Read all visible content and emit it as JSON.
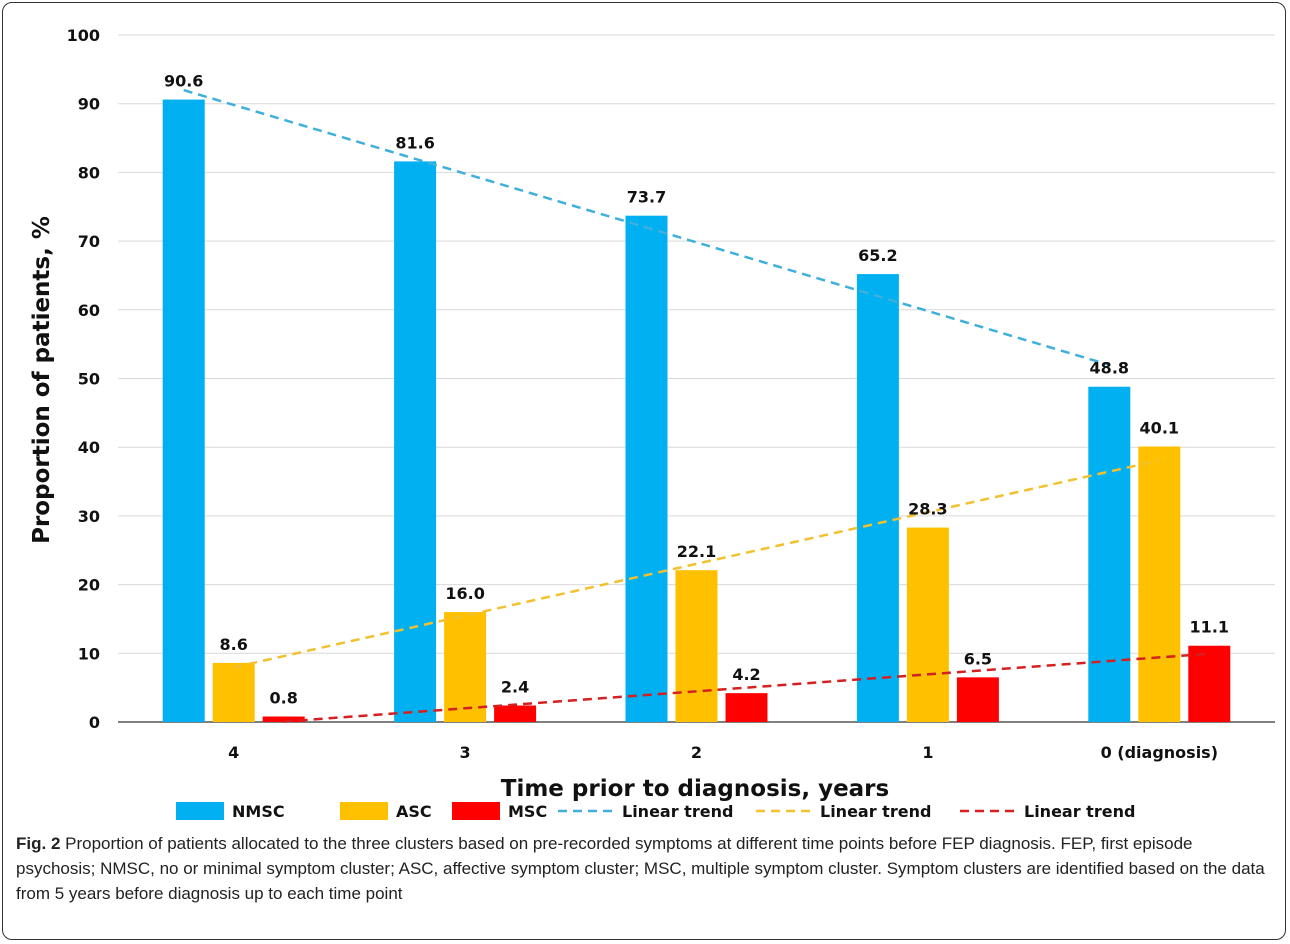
{
  "chart_data": {
    "type": "bar",
    "categories": [
      "4",
      "3",
      "2",
      "1",
      "0 (diagnosis)"
    ],
    "series": [
      {
        "name": "NMSC",
        "values": [
          90.6,
          81.6,
          73.7,
          65.2,
          48.8
        ],
        "color": "#00B0F0"
      },
      {
        "name": "ASC",
        "values": [
          8.6,
          16.0,
          22.1,
          28.3,
          40.1
        ],
        "color": "#FFC000"
      },
      {
        "name": "MSC",
        "values": [
          0.8,
          2.4,
          4.2,
          6.5,
          11.1
        ],
        "color": "#FF0000"
      }
    ],
    "data_labels": [
      [
        "90.6",
        "81.6",
        "73.7",
        "65.2",
        "48.8"
      ],
      [
        "8.6",
        "16.0",
        "22.1",
        "28.3",
        "40.1"
      ],
      [
        "0.8",
        "2.4",
        "4.2",
        "6.5",
        "11.1"
      ]
    ],
    "trendlines": [
      {
        "name": "Linear trend",
        "series": "NMSC",
        "style": "dashed",
        "color": "#3FB0DC"
      },
      {
        "name": "Linear trend",
        "series": "ASC",
        "style": "dashed",
        "color": "#F2C12E"
      },
      {
        "name": "Linear trend",
        "series": "MSC",
        "style": "dashed",
        "color": "#D42020"
      }
    ],
    "xlabel": "Time prior to diagnosis,  years",
    "ylabel": "Proportion  of patients, %",
    "ylim": [
      0,
      100
    ],
    "yticks": [
      "0",
      "10",
      "20",
      "30",
      "40",
      "50",
      "60",
      "70",
      "80",
      "90",
      "100"
    ],
    "grid": true,
    "legend_position": "bottom"
  },
  "caption": {
    "label": "Fig. 2",
    "text": "Proportion of patients allocated to the three clusters based on pre-recorded symptoms at different time points before FEP diagnosis. FEP, first episode psychosis; NMSC, no or minimal symptom cluster; ASC, affective symptom cluster; MSC, multiple symptom cluster. Symptom clusters are identified based on the data from 5 years before diagnosis up to each time point"
  }
}
